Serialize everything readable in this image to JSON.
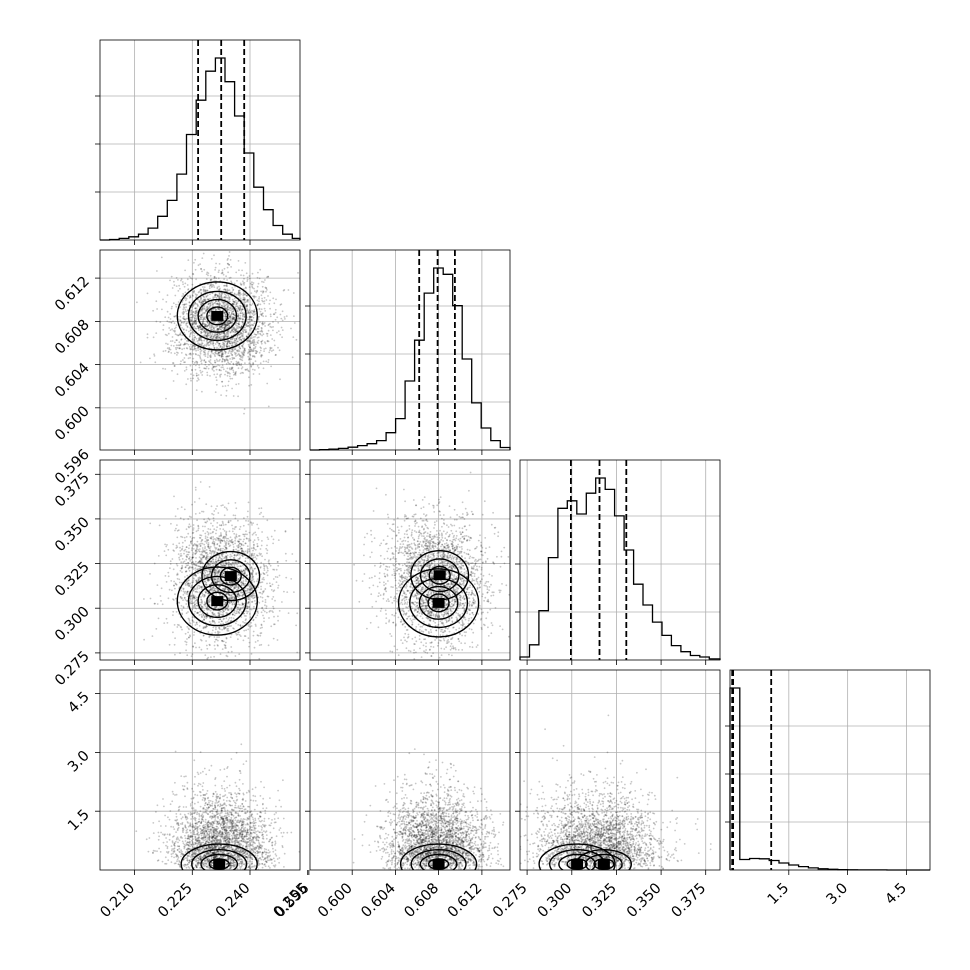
{
  "chart_data": {
    "type": "corner",
    "parameters": [
      {
        "ticks": [
          0.21,
          0.225,
          0.24,
          0.255
        ],
        "tick_labels": [
          "0.210",
          "0.225",
          "0.240",
          "0.255"
        ],
        "range": [
          0.201,
          0.253
        ]
      },
      {
        "ticks": [
          0.596,
          0.6,
          0.604,
          0.608,
          0.612
        ],
        "tick_labels": [
          "0.596",
          "0.600",
          "0.604",
          "0.608",
          "0.612"
        ],
        "range": [
          0.5961,
          0.6146
        ]
      },
      {
        "ticks": [
          0.275,
          0.3,
          0.325,
          0.35,
          0.375
        ],
        "tick_labels": [
          "0.275",
          "0.300",
          "0.325",
          "0.350",
          "0.375"
        ],
        "range": [
          0.271,
          0.383
        ]
      },
      {
        "ticks": [
          1.5,
          3.0,
          4.5
        ],
        "tick_labels": [
          "1.5",
          "3.0",
          "4.5"
        ],
        "range": [
          0.0,
          5.1
        ]
      }
    ],
    "quantiles": [
      [
        0.2265,
        0.2325,
        0.2385
      ],
      [
        0.6062,
        0.6079,
        0.6095
      ],
      [
        0.2995,
        0.3155,
        0.3305
      ],
      [
        0.055,
        0.08,
        1.05
      ]
    ],
    "histograms": [
      {
        "bins": [
          0.201,
          0.2035,
          0.206,
          0.2085,
          0.211,
          0.2135,
          0.216,
          0.2185,
          0.221,
          0.2235,
          0.226,
          0.2285,
          0.231,
          0.2335,
          0.236,
          0.2385,
          0.241,
          0.2435,
          0.246,
          0.2485,
          0.251,
          0.253
        ],
        "counts": [
          0,
          2,
          6,
          12,
          22,
          45,
          90,
          150,
          250,
          400,
          530,
          640,
          690,
          600,
          470,
          330,
          200,
          115,
          55,
          22,
          6
        ]
      },
      {
        "bins": [
          0.5961,
          0.59698,
          0.59786,
          0.59874,
          0.59962,
          0.6005,
          0.60138,
          0.60226,
          0.60314,
          0.60402,
          0.6049,
          0.60578,
          0.60666,
          0.60754,
          0.60842,
          0.6093,
          0.61018,
          0.61106,
          0.61194,
          0.61282,
          0.6137,
          0.6146
        ],
        "counts": [
          0,
          1,
          3,
          5,
          9,
          14,
          20,
          30,
          55,
          100,
          220,
          350,
          500,
          580,
          560,
          460,
          290,
          150,
          70,
          30,
          8
        ]
      },
      {
        "bins": [
          0.271,
          0.2763,
          0.2816,
          0.2869,
          0.2922,
          0.2975,
          0.3028,
          0.3081,
          0.3134,
          0.3187,
          0.324,
          0.3293,
          0.3346,
          0.3399,
          0.3452,
          0.3505,
          0.3558,
          0.3611,
          0.3664,
          0.3717,
          0.377,
          0.383
        ],
        "counts": [
          8,
          40,
          130,
          270,
          400,
          420,
          385,
          440,
          480,
          450,
          380,
          290,
          200,
          145,
          100,
          65,
          38,
          22,
          12,
          8,
          3
        ]
      },
      {
        "bins": [
          0.0,
          0.25,
          0.5,
          0.75,
          1.0,
          1.25,
          1.5,
          1.75,
          2.0,
          2.25,
          2.5,
          2.75,
          3.0,
          3.25,
          3.5,
          3.75,
          4.0,
          4.25,
          4.5,
          4.75,
          5.0,
          5.1
        ],
        "counts": [
          2600,
          150,
          165,
          160,
          135,
          100,
          72,
          48,
          30,
          17,
          10,
          6,
          3,
          2,
          1,
          1,
          0,
          0,
          0,
          0,
          0
        ]
      }
    ],
    "scatter_panels": [
      {
        "x_param": 0,
        "y_param": 1,
        "peaks": [
          [
            0.2315,
            0.6085
          ]
        ]
      },
      {
        "x_param": 0,
        "y_param": 2,
        "peaks": [
          [
            0.2315,
            0.304
          ],
          [
            0.235,
            0.318
          ]
        ]
      },
      {
        "x_param": 1,
        "y_param": 2,
        "peaks": [
          [
            0.608,
            0.303
          ],
          [
            0.6081,
            0.3185
          ]
        ]
      },
      {
        "x_param": 0,
        "y_param": 3,
        "peaks": [
          [
            0.232,
            0.15
          ]
        ]
      },
      {
        "x_param": 1,
        "y_param": 3,
        "peaks": [
          [
            0.608,
            0.15
          ]
        ]
      },
      {
        "x_param": 2,
        "y_param": 3,
        "peaks": [
          [
            0.303,
            0.15
          ],
          [
            0.318,
            0.15
          ]
        ]
      }
    ],
    "grid": true,
    "colors": {
      "line": "#000000",
      "grid": "#b0b0b0",
      "points": "#000000"
    }
  }
}
